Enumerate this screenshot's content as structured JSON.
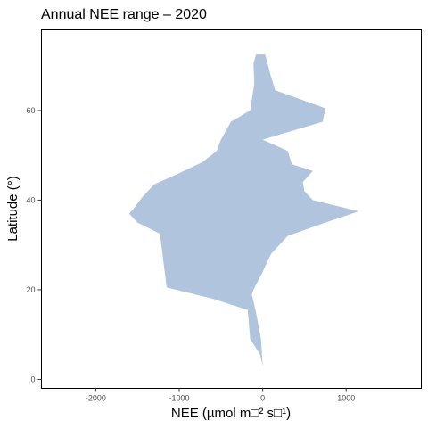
{
  "chart_data": {
    "type": "area",
    "title": "Annual NEE range – 2020",
    "xlabel": "NEE (µmol m□² s□¹)",
    "ylabel": "Latitude (°)",
    "xlim": [
      -2650,
      1900
    ],
    "ylim": [
      -2,
      78
    ],
    "xticks": [
      -2000,
      -1000,
      0,
      1000
    ],
    "yticks": [
      0,
      20,
      40,
      60
    ],
    "grid": false,
    "legend": "none",
    "fill_color": "#b0c4de",
    "max_nee": [
      {
        "lat": 3,
        "nee": 0
      },
      {
        "lat": 9,
        "nee": -20
      },
      {
        "lat": 15,
        "nee": -80
      },
      {
        "lat": 19,
        "nee": -130
      },
      {
        "lat": 20,
        "nee": -110
      },
      {
        "lat": 24,
        "nee": 0
      },
      {
        "lat": 28,
        "nee": 100
      },
      {
        "lat": 32,
        "nee": 300
      },
      {
        "lat": 35,
        "nee": 750
      },
      {
        "lat": 37.5,
        "nee": 1150
      },
      {
        "lat": 40,
        "nee": 600
      },
      {
        "lat": 42,
        "nee": 500
      },
      {
        "lat": 44,
        "nee": 480
      },
      {
        "lat": 46.5,
        "nee": 600
      },
      {
        "lat": 48,
        "nee": 350
      },
      {
        "lat": 51,
        "nee": 300
      },
      {
        "lat": 53.5,
        "nee": 0
      },
      {
        "lat": 57.5,
        "nee": 720
      },
      {
        "lat": 60.5,
        "nee": 750
      },
      {
        "lat": 64.5,
        "nee": 150
      },
      {
        "lat": 67.5,
        "nee": 100
      },
      {
        "lat": 72.5,
        "nee": 30
      }
    ],
    "min_nee": [
      {
        "lat": 72.5,
        "nee": -80
      },
      {
        "lat": 70.5,
        "nee": -110
      },
      {
        "lat": 66,
        "nee": -100
      },
      {
        "lat": 60,
        "nee": -150
      },
      {
        "lat": 57.5,
        "nee": -380
      },
      {
        "lat": 53.5,
        "nee": -500
      },
      {
        "lat": 51,
        "nee": -550
      },
      {
        "lat": 48.5,
        "nee": -720
      },
      {
        "lat": 46,
        "nee": -1000
      },
      {
        "lat": 43.5,
        "nee": -1300
      },
      {
        "lat": 40.5,
        "nee": -1450
      },
      {
        "lat": 38,
        "nee": -1550
      },
      {
        "lat": 37,
        "nee": -1600
      },
      {
        "lat": 35,
        "nee": -1500
      },
      {
        "lat": 32.5,
        "nee": -1230
      },
      {
        "lat": 20.5,
        "nee": -1150
      },
      {
        "lat": 18,
        "nee": -600
      },
      {
        "lat": 15.5,
        "nee": -180
      },
      {
        "lat": 9,
        "nee": -150
      },
      {
        "lat": 5.5,
        "nee": -30
      }
    ]
  }
}
